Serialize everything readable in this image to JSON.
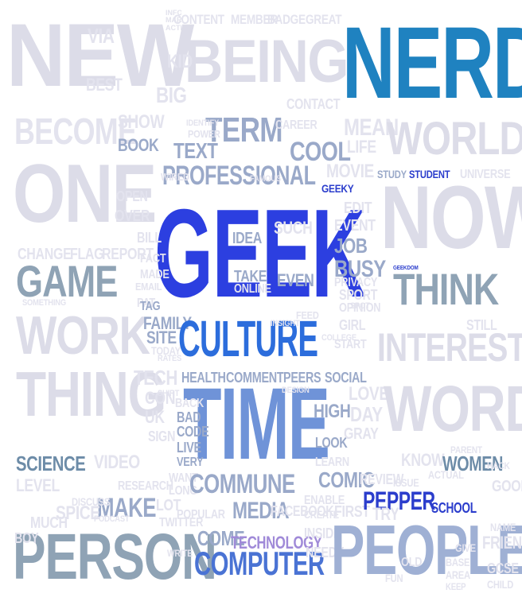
{
  "words": {
    "new": "NEW",
    "being": "BEING",
    "nerd": "NERD",
    "content": "CONTENT",
    "member": "MEMBER",
    "badge": "BADGE",
    "great": "GREAT",
    "via": "VIA",
    "best": "BEST",
    "kid": "KID",
    "big": "BIG",
    "become": "BECOME",
    "show": "SHOW",
    "book": "BOOK",
    "term": "TERM",
    "text": "TEXT",
    "cool": "COOL",
    "mean": "MEAN",
    "world": "WORLD",
    "life": "LIFE",
    "professional": "PROFESSIONAL",
    "one": "ONE",
    "movie": "MOVIE",
    "study": "STUDY",
    "student": "STUDENT",
    "universe": "UNIVERSE",
    "geeky": "GEEKY",
    "geek": "GEEK",
    "now": "NOW",
    "bill": "BILL",
    "change": "CHANGE",
    "flag": "FLAG",
    "report": "REPORT",
    "idea": "IDEA",
    "such": "SUCH",
    "job": "JOB",
    "event": "EVENT",
    "edit": "EDIT",
    "game": "GAME",
    "busy": "BUSY",
    "geekdom": "GEEKDOM",
    "think": "THINK",
    "privacy": "PRIVACY",
    "take": "TAKE",
    "even": "EVEN",
    "online": "ONLINE",
    "sport": "SPORT",
    "opinion": "OPINION",
    "work": "WORK",
    "family": "FAMILY",
    "site": "SITE",
    "today": "TODAY",
    "tag": "TAG",
    "culture": "CULTURE",
    "girl": "GIRL",
    "start": "START",
    "interest": "INTEREST",
    "thing": "THING",
    "health": "HEALTH",
    "comment": "COMMENT",
    "peers": "PEERS",
    "social": "SOCIAL",
    "time": "TIME",
    "high": "HIGH",
    "love": "LOVE",
    "day": "DAY",
    "gray": "GRAY",
    "word": "WORD",
    "tech": "TECH",
    "bad": "BAD",
    "code": "CODE",
    "live": "LIVE",
    "very": "VERY",
    "look": "LOOK",
    "science": "SCIENCE",
    "video": "VIDEO",
    "know": "KNOW",
    "women": "WOMEN",
    "level": "LEVEL",
    "research": "RESEARCH",
    "commune": "COMMUNE",
    "comic": "COMIC",
    "review": "REVIEW",
    "good": "GOOD",
    "make": "MAKE",
    "pepper": "PEPPER",
    "school": "SCHOOL",
    "spice": "SPICE",
    "lot": "LOT",
    "media": "MEDIA",
    "facebook": "FACEBOOK",
    "popular": "POPULAR",
    "twitter": "TWITTER",
    "much": "MUCH",
    "person": "PERSON",
    "come": "COME",
    "technology": "TECHNOLOGY",
    "people": "PEOPLE",
    "computer": "COMPUTER",
    "try": "TRY",
    "friend": "FRIEND",
    "gcse": "GCSE",
    "first": "FIRST",
    "needy": "NEEDY",
    "boy": "BOY",
    "fun": "FUN",
    "old": "OLD",
    "child": "CHILD",
    "uk": "UK",
    "con": "CON",
    "sign": "SIGN",
    "fact": "FACT",
    "pat": "PAT",
    "made": "MADE",
    "open": "OPEN",
    "over": "OVER",
    "info": "INFO",
    "active": "ACTIVE",
    "market": "MARKET",
    "contact": "CONTACT",
    "career": "CAREER",
    "identify": "IDENTIFY",
    "power": "POWER",
    "wired": "WIRED",
    "enable": "ENABLE",
    "learn": "LEARN",
    "issue": "ISSUE",
    "insight": "INSIGHT",
    "feed": "FEED",
    "shirt": "SHIRT",
    "want": "WANT",
    "long": "LONG",
    "back": "BACK",
    "write": "WRITE",
    "create": "CREATE",
    "inside": "INSIDE",
    "base": "BASE",
    "area": "AREA",
    "keep": "KEEP",
    "give": "GIVE",
    "name": "NAME",
    "spot": "SPOT",
    "something": "SOMETHING",
    "email": "EMAIL",
    "rates": "RATES",
    "college": "COLLEGE",
    "podcast": "PODCAST",
    "design": "DESIGN",
    "famous": "FAMOUS",
    "discuss": "DISCUSS",
    "parent": "PARENT",
    "actual": "ACTUAL",
    "hack": "HACK",
    "still": "STILL"
  }
}
